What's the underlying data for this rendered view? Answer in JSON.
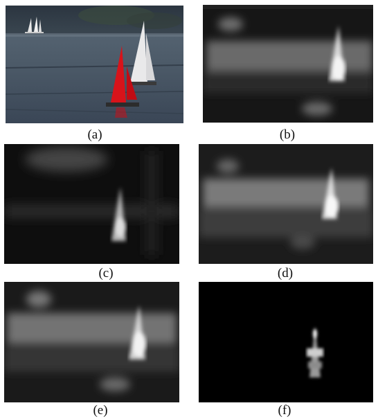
{
  "figure": {
    "panels": [
      {
        "id": "a",
        "label": "(a)",
        "content": "color photo of sailboats on a lake"
      },
      {
        "id": "b",
        "label": "(b)",
        "content": "grayscale saliency map"
      },
      {
        "id": "c",
        "label": "(c)",
        "content": "grayscale saliency map"
      },
      {
        "id": "d",
        "label": "(d)",
        "content": "grayscale saliency map"
      },
      {
        "id": "e",
        "label": "(e)",
        "content": "grayscale saliency map"
      },
      {
        "id": "f",
        "label": "(f)",
        "content": "grayscale saliency map on black"
      }
    ]
  }
}
